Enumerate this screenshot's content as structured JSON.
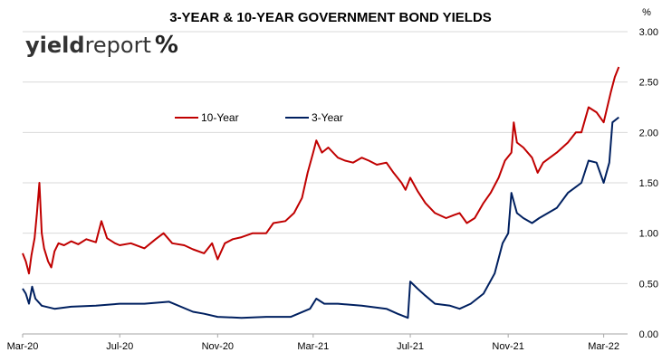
{
  "chart_data": {
    "type": "line",
    "title": "3-YEAR & 10-YEAR GOVERNMENT BOND YIELDS",
    "ylabel": "%",
    "ylim": [
      0,
      3
    ],
    "yticks": [
      "0.00",
      "0.50",
      "1.00",
      "1.50",
      "2.00",
      "2.50",
      "3.00"
    ],
    "xticks": [
      "Mar-20",
      "Jul-20",
      "Nov-20",
      "Mar-21",
      "Jul-21",
      "Nov-21",
      "Mar-22"
    ],
    "xlim": [
      "2020-03-01",
      "2022-03-31"
    ],
    "grid": "horizontal",
    "legend_position": "upper-left-center",
    "colors": {
      "ten_year": "#C00000",
      "three_year": "#002060",
      "grid": "#D9D9D9",
      "axis": "#A6A6A6"
    },
    "series": [
      {
        "name": "10-Year",
        "points": [
          [
            "2020-03-01",
            0.8
          ],
          [
            "2020-03-05",
            0.72
          ],
          [
            "2020-03-09",
            0.6
          ],
          [
            "2020-03-12",
            0.78
          ],
          [
            "2020-03-16",
            0.95
          ],
          [
            "2020-03-19",
            1.2
          ],
          [
            "2020-03-22",
            1.5
          ],
          [
            "2020-03-25",
            1.0
          ],
          [
            "2020-03-28",
            0.85
          ],
          [
            "2020-04-02",
            0.72
          ],
          [
            "2020-04-06",
            0.66
          ],
          [
            "2020-04-10",
            0.82
          ],
          [
            "2020-04-15",
            0.9
          ],
          [
            "2020-04-22",
            0.88
          ],
          [
            "2020-05-01",
            0.92
          ],
          [
            "2020-05-10",
            0.89
          ],
          [
            "2020-05-20",
            0.94
          ],
          [
            "2020-06-01",
            0.91
          ],
          [
            "2020-06-08",
            1.12
          ],
          [
            "2020-06-15",
            0.95
          ],
          [
            "2020-06-25",
            0.9
          ],
          [
            "2020-07-01",
            0.88
          ],
          [
            "2020-07-15",
            0.9
          ],
          [
            "2020-08-01",
            0.85
          ],
          [
            "2020-08-15",
            0.94
          ],
          [
            "2020-08-25",
            1.0
          ],
          [
            "2020-09-05",
            0.9
          ],
          [
            "2020-09-20",
            0.88
          ],
          [
            "2020-10-01",
            0.84
          ],
          [
            "2020-10-15",
            0.8
          ],
          [
            "2020-10-25",
            0.9
          ],
          [
            "2020-11-01",
            0.74
          ],
          [
            "2020-11-10",
            0.9
          ],
          [
            "2020-11-20",
            0.94
          ],
          [
            "2020-12-01",
            0.96
          ],
          [
            "2020-12-15",
            1.0
          ],
          [
            "2021-01-01",
            1.0
          ],
          [
            "2021-01-10",
            1.1
          ],
          [
            "2021-01-25",
            1.12
          ],
          [
            "2021-02-05",
            1.2
          ],
          [
            "2021-02-15",
            1.35
          ],
          [
            "2021-02-22",
            1.6
          ],
          [
            "2021-03-01",
            1.8
          ],
          [
            "2021-03-05",
            1.92
          ],
          [
            "2021-03-12",
            1.8
          ],
          [
            "2021-03-20",
            1.85
          ],
          [
            "2021-04-01",
            1.75
          ],
          [
            "2021-04-10",
            1.72
          ],
          [
            "2021-04-20",
            1.7
          ],
          [
            "2021-05-01",
            1.75
          ],
          [
            "2021-05-10",
            1.72
          ],
          [
            "2021-05-20",
            1.68
          ],
          [
            "2021-06-01",
            1.7
          ],
          [
            "2021-06-10",
            1.6
          ],
          [
            "2021-06-20",
            1.5
          ],
          [
            "2021-06-25",
            1.43
          ],
          [
            "2021-07-01",
            1.55
          ],
          [
            "2021-07-10",
            1.42
          ],
          [
            "2021-07-20",
            1.3
          ],
          [
            "2021-08-01",
            1.2
          ],
          [
            "2021-08-15",
            1.15
          ],
          [
            "2021-08-25",
            1.18
          ],
          [
            "2021-09-01",
            1.2
          ],
          [
            "2021-09-10",
            1.1
          ],
          [
            "2021-09-20",
            1.15
          ],
          [
            "2021-10-01",
            1.3
          ],
          [
            "2021-10-10",
            1.4
          ],
          [
            "2021-10-20",
            1.55
          ],
          [
            "2021-10-28",
            1.72
          ],
          [
            "2021-11-05",
            1.8
          ],
          [
            "2021-11-08",
            2.1
          ],
          [
            "2021-11-12",
            1.9
          ],
          [
            "2021-11-20",
            1.85
          ],
          [
            "2021-12-01",
            1.75
          ],
          [
            "2021-12-08",
            1.6
          ],
          [
            "2021-12-15",
            1.7
          ],
          [
            "2022-01-01",
            1.8
          ],
          [
            "2022-01-15",
            1.9
          ],
          [
            "2022-01-25",
            2.0
          ],
          [
            "2022-02-01",
            2.0
          ],
          [
            "2022-02-10",
            2.25
          ],
          [
            "2022-02-20",
            2.2
          ],
          [
            "2022-03-01",
            2.1
          ],
          [
            "2022-03-10",
            2.4
          ],
          [
            "2022-03-15",
            2.55
          ],
          [
            "2022-03-20",
            2.65
          ]
        ]
      },
      {
        "name": "3-Year",
        "points": [
          [
            "2020-03-01",
            0.45
          ],
          [
            "2020-03-05",
            0.4
          ],
          [
            "2020-03-09",
            0.3
          ],
          [
            "2020-03-13",
            0.47
          ],
          [
            "2020-03-17",
            0.35
          ],
          [
            "2020-03-25",
            0.28
          ],
          [
            "2020-04-10",
            0.25
          ],
          [
            "2020-05-01",
            0.27
          ],
          [
            "2020-06-01",
            0.28
          ],
          [
            "2020-07-01",
            0.3
          ],
          [
            "2020-08-01",
            0.3
          ],
          [
            "2020-09-01",
            0.32
          ],
          [
            "2020-10-01",
            0.22
          ],
          [
            "2020-10-15",
            0.2
          ],
          [
            "2020-11-01",
            0.17
          ],
          [
            "2020-12-01",
            0.16
          ],
          [
            "2021-01-01",
            0.17
          ],
          [
            "2021-02-01",
            0.17
          ],
          [
            "2021-02-25",
            0.25
          ],
          [
            "2021-03-05",
            0.35
          ],
          [
            "2021-03-15",
            0.3
          ],
          [
            "2021-04-01",
            0.3
          ],
          [
            "2021-05-01",
            0.28
          ],
          [
            "2021-06-01",
            0.25
          ],
          [
            "2021-06-15",
            0.2
          ],
          [
            "2021-06-28",
            0.16
          ],
          [
            "2021-07-01",
            0.52
          ],
          [
            "2021-07-10",
            0.45
          ],
          [
            "2021-07-20",
            0.38
          ],
          [
            "2021-08-01",
            0.3
          ],
          [
            "2021-08-20",
            0.28
          ],
          [
            "2021-09-01",
            0.25
          ],
          [
            "2021-09-15",
            0.3
          ],
          [
            "2021-10-01",
            0.4
          ],
          [
            "2021-10-15",
            0.6
          ],
          [
            "2021-10-25",
            0.9
          ],
          [
            "2021-11-01",
            1.0
          ],
          [
            "2021-11-05",
            1.4
          ],
          [
            "2021-11-12",
            1.2
          ],
          [
            "2021-11-20",
            1.15
          ],
          [
            "2021-12-01",
            1.1
          ],
          [
            "2021-12-10",
            1.15
          ],
          [
            "2022-01-01",
            1.25
          ],
          [
            "2022-01-15",
            1.4
          ],
          [
            "2022-02-01",
            1.5
          ],
          [
            "2022-02-10",
            1.72
          ],
          [
            "2022-02-20",
            1.7
          ],
          [
            "2022-03-01",
            1.5
          ],
          [
            "2022-03-08",
            1.7
          ],
          [
            "2022-03-12",
            2.1
          ],
          [
            "2022-03-20",
            2.15
          ]
        ]
      }
    ]
  },
  "logo": {
    "part1": "yield",
    "part2": "report",
    "symbol": "%"
  }
}
